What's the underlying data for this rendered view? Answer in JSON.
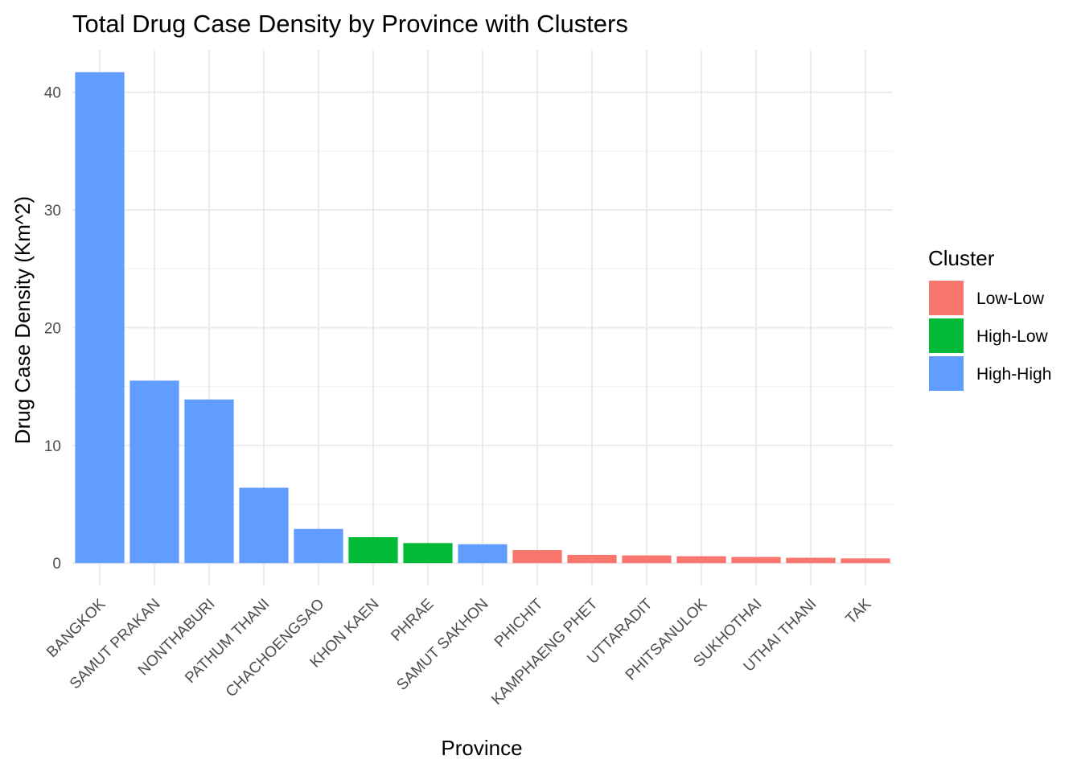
{
  "chart_data": {
    "type": "bar",
    "title": "Total Drug Case Density by Province with Clusters",
    "xlabel": "Province",
    "ylabel": "Drug Case Density (Km^2)",
    "ylim": [
      -1.9,
      43.6
    ],
    "yticks": [
      0,
      10,
      20,
      30,
      40
    ],
    "grid": true,
    "legend": {
      "title": "Cluster",
      "position": "right",
      "entries": [
        {
          "name": "Low-Low",
          "color": "#F8766D"
        },
        {
          "name": "High-Low",
          "color": "#00BA38"
        },
        {
          "name": "High-High",
          "color": "#619CFF"
        }
      ]
    },
    "categories": [
      "BANGKOK",
      "SAMUT PRAKAN",
      "NONTHABURI",
      "PATHUM THANI",
      "CHACHOENGSAO",
      "KHON KAEN",
      "PHRAE",
      "SAMUT SAKHON",
      "PHICHIT",
      "KAMPHAENG PHET",
      "UTTARADIT",
      "PHITSANULOK",
      "SUKHOTHAI",
      "UTHAI THANI",
      "TAK"
    ],
    "values": [
      41.7,
      15.5,
      13.9,
      6.4,
      2.9,
      2.2,
      1.7,
      1.6,
      1.1,
      0.7,
      0.65,
      0.58,
      0.52,
      0.45,
      0.4
    ],
    "clusters": [
      "High-High",
      "High-High",
      "High-High",
      "High-High",
      "High-High",
      "High-Low",
      "High-Low",
      "High-High",
      "Low-Low",
      "Low-Low",
      "Low-Low",
      "Low-Low",
      "Low-Low",
      "Low-Low",
      "Low-Low"
    ]
  }
}
